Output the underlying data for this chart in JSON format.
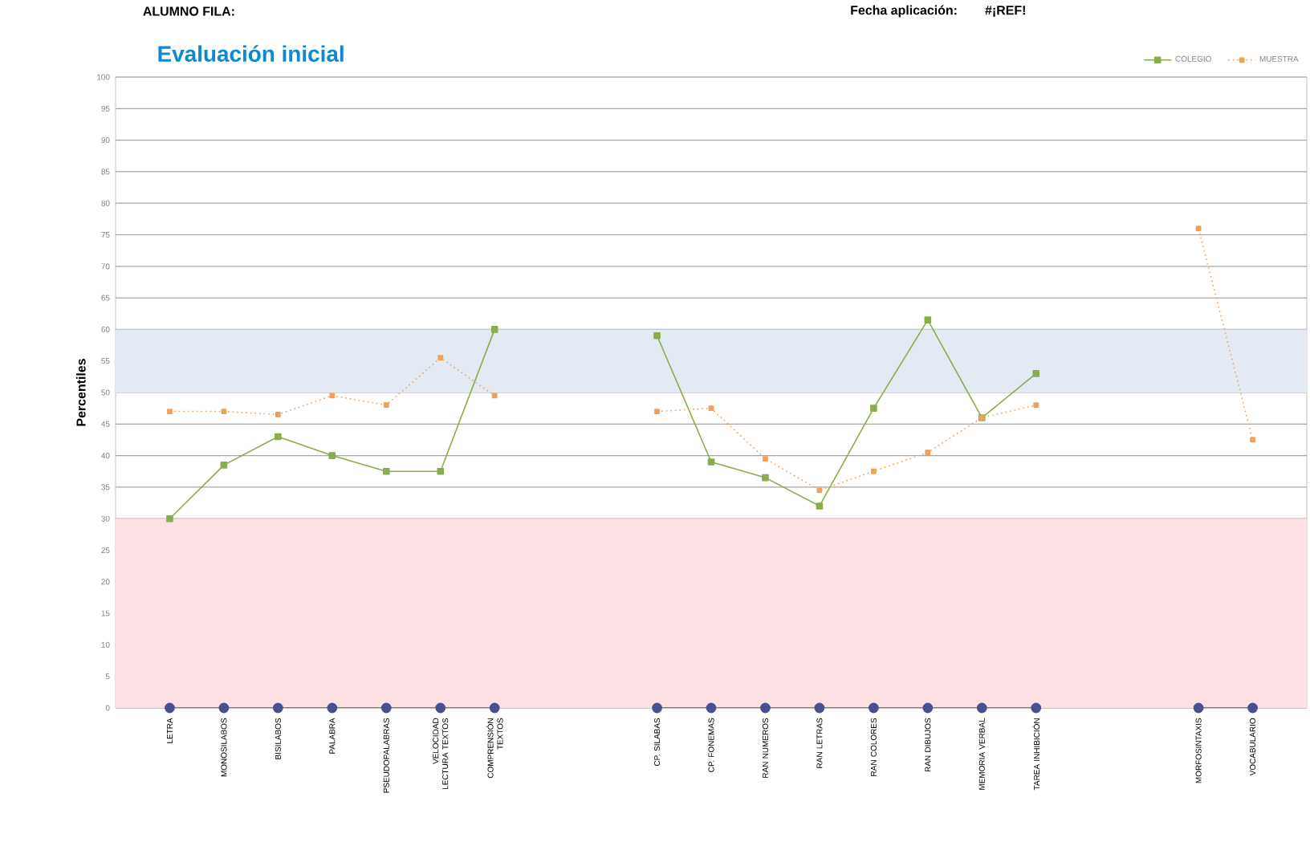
{
  "chart_data": {
    "type": "line",
    "title": "Evaluación inicial",
    "ylabel": "Percentiles",
    "annotations": [
      "ALUMNO FILA:",
      "Fecha aplicación:",
      "#¡REF!"
    ],
    "categories": [
      "LETRA",
      "MONOSILABOS",
      "BISILABOS",
      "PALABRA",
      "PSEUDOPALABRAS",
      "VELOCIDAD LECTURA TEXTOS",
      "COMPRENSIÓN TEXTOS",
      null,
      null,
      "CP. SILABAS",
      "CP. FONEMAS",
      "RAN NUMEROS",
      "RAN LETRAS",
      "RAN COLORES",
      "RAN DIBUJOS",
      "MEMORIA VERBAL",
      "TAREA INHIBICIÓN",
      null,
      null,
      "MORFOSINTAXIS",
      "VOCABULARIO"
    ],
    "series": [
      {
        "color": "#4a4f8f",
        "marker": "circle",
        "line_style": "solid",
        "values": [
          0,
          0,
          0,
          0,
          0,
          0,
          0,
          null,
          null,
          0,
          0,
          0,
          0,
          0,
          0,
          0,
          0,
          null,
          null,
          0,
          0
        ]
      },
      {
        "name": "COLEGIO",
        "color": "#8aac4c",
        "marker": "square",
        "line_style": "solid",
        "values": [
          30,
          38.5,
          43,
          40,
          37.5,
          37.5,
          60,
          null,
          null,
          59,
          39,
          36.5,
          32,
          47.5,
          61.5,
          46,
          53,
          null,
          null,
          null,
          null
        ]
      },
      {
        "name": "MUESTRA",
        "color": "#f0a058",
        "marker": "square",
        "line_style": "dotted",
        "values": [
          47,
          47,
          46.5,
          49.5,
          48,
          55.5,
          49.5,
          null,
          null,
          47,
          47.5,
          39.5,
          34.5,
          37.5,
          40.5,
          46,
          48,
          null,
          null,
          76,
          42.5
        ]
      }
    ],
    "ylim": [
      0,
      100
    ],
    "yticks": [
      0,
      5,
      10,
      15,
      20,
      25,
      30,
      35,
      40,
      45,
      50,
      55,
      60,
      65,
      70,
      75,
      80,
      85,
      90,
      95,
      100
    ],
    "grid": "y",
    "legend": "top right",
    "bands": [
      {
        "axis": "y",
        "from": 0,
        "to": 30,
        "color": "#fbe1e4"
      },
      {
        "axis": "y",
        "from": 50,
        "to": 60,
        "color": "#e4eaf4"
      }
    ]
  }
}
